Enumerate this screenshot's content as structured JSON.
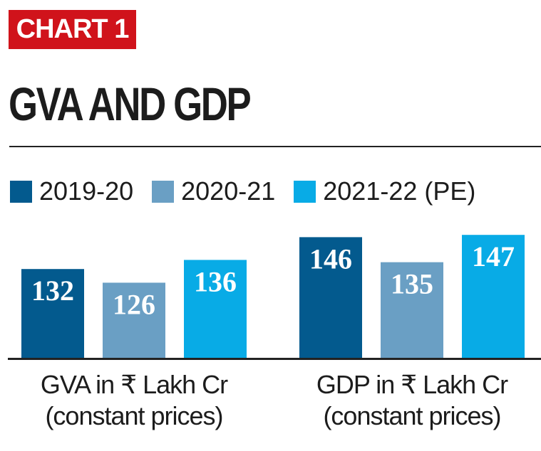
{
  "badge": "CHART 1",
  "chart_data": {
    "type": "bar",
    "title": "GVA AND GDP",
    "categories": [
      "GVA in ₹ Lakh Cr (constant prices)",
      "GDP in ₹ Lakh Cr (constant prices)"
    ],
    "category_lines": [
      [
        "GVA in ₹ Lakh Cr",
        "(constant prices)"
      ],
      [
        "GDP in ₹ Lakh Cr",
        "(constant prices)"
      ]
    ],
    "series": [
      {
        "name": "2019-20",
        "color": "#035a8e",
        "values": [
          132,
          146
        ]
      },
      {
        "name": "2020-21",
        "color": "#6a9fc4",
        "values": [
          126,
          135
        ]
      },
      {
        "name": "2021-22 (PE)",
        "color": "#08abe6",
        "values": [
          136,
          147
        ]
      }
    ],
    "ylim": [
      93,
      148
    ],
    "grid": false,
    "legend": "top",
    "data_labels": true
  }
}
